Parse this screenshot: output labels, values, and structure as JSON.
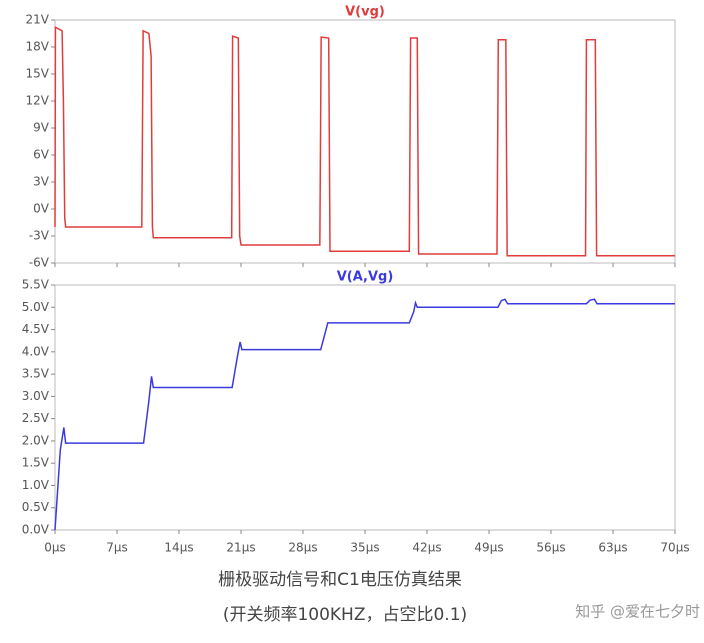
{
  "chart_data": [
    {
      "type": "line",
      "x": [
        0,
        0.05,
        0.8,
        0.95,
        1.1,
        1.2,
        9.8,
        9.95,
        10.6,
        10.85,
        11.0,
        11.1,
        19.95,
        20.05,
        20.7,
        20.85,
        21.0,
        29.9,
        30.05,
        30.9,
        31.05,
        40.0,
        40.15,
        40.9,
        41.05,
        49.9,
        50.05,
        50.9,
        51.05,
        59.9,
        60.0,
        61.0,
        61.15,
        70
      ],
      "series": [
        {
          "name": "V(vg)",
          "color": "#e03c3c",
          "values": [
            -2,
            20.2,
            19.8,
            12,
            -1,
            -2,
            -2,
            19.8,
            19.5,
            17,
            -2,
            -3.2,
            -3.2,
            19.2,
            19.0,
            -3,
            -4.0,
            -4.0,
            19.1,
            19.0,
            -4.7,
            -4.7,
            19.0,
            19.0,
            -5.0,
            -5.0,
            18.8,
            18.8,
            -5.2,
            -5.2,
            18.8,
            18.8,
            -5.2,
            -5.2
          ]
        }
      ],
      "xlim": [
        0,
        70
      ],
      "xticks": [
        0,
        7,
        14,
        21,
        28,
        35,
        42,
        49,
        56,
        63,
        70
      ],
      "ylim": [
        -6,
        21
      ],
      "yticks": [
        {
          "value": -6,
          "label": "-6V"
        },
        {
          "value": -3,
          "label": "-3V"
        },
        {
          "value": 0,
          "label": "0V"
        },
        {
          "value": 3,
          "label": "3V"
        },
        {
          "value": 6,
          "label": "6V"
        },
        {
          "value": 9,
          "label": "9V"
        },
        {
          "value": 12,
          "label": "12V"
        },
        {
          "value": 15,
          "label": "15V"
        },
        {
          "value": 18,
          "label": "18V"
        },
        {
          "value": 21,
          "label": "21V"
        }
      ],
      "grid": false
    },
    {
      "type": "line",
      "x": [
        0,
        0.6,
        1.0,
        1.2,
        10.0,
        10.6,
        10.9,
        11.1,
        20.0,
        20.6,
        20.9,
        21.1,
        30.0,
        30.6,
        30.8,
        40.0,
        40.5,
        40.7,
        40.9,
        50.0,
        50.4,
        50.8,
        51.1,
        60.0,
        60.4,
        60.9,
        61.2,
        70
      ],
      "series": [
        {
          "name": "V(A,Vg)",
          "color": "#3a3adf",
          "values": [
            0,
            1.8,
            2.3,
            1.95,
            1.95,
            2.9,
            3.45,
            3.2,
            3.2,
            3.9,
            4.22,
            4.05,
            4.05,
            4.5,
            4.65,
            4.65,
            4.9,
            5.1,
            5.0,
            5.0,
            5.15,
            5.18,
            5.08,
            5.08,
            5.16,
            5.18,
            5.08,
            5.08
          ]
        }
      ],
      "xlim": [
        0,
        70
      ],
      "xticks": [
        {
          "value": 0,
          "label": "0µs"
        },
        {
          "value": 7,
          "label": "7µs"
        },
        {
          "value": 14,
          "label": "14µs"
        },
        {
          "value": 21,
          "label": "21µs"
        },
        {
          "value": 28,
          "label": "28µs"
        },
        {
          "value": 35,
          "label": "35µs"
        },
        {
          "value": 42,
          "label": "42µs"
        },
        {
          "value": 49,
          "label": "49µs"
        },
        {
          "value": 56,
          "label": "56µs"
        },
        {
          "value": 63,
          "label": "63µs"
        },
        {
          "value": 70,
          "label": "70µs"
        }
      ],
      "ylim": [
        0,
        5.5
      ],
      "yticks": [
        {
          "value": 0,
          "label": "0.0V"
        },
        {
          "value": 0.5,
          "label": "0.5V"
        },
        {
          "value": 1,
          "label": "1.0V"
        },
        {
          "value": 1.5,
          "label": "1.5V"
        },
        {
          "value": 2,
          "label": "2.0V"
        },
        {
          "value": 2.5,
          "label": "2.5V"
        },
        {
          "value": 3,
          "label": "3.0V"
        },
        {
          "value": 3.5,
          "label": "3.5V"
        },
        {
          "value": 4,
          "label": "4.0V"
        },
        {
          "value": 4.5,
          "label": "4.5V"
        },
        {
          "value": 5,
          "label": "5.0V"
        },
        {
          "value": 5.5,
          "label": "5.5V"
        }
      ],
      "grid": false
    }
  ],
  "caption": [
    "栅极驱动信号和C1电压仿真结果",
    "(开关频率100KHZ，占空比0.1)"
  ],
  "watermark": "知乎 @爱在七夕时"
}
